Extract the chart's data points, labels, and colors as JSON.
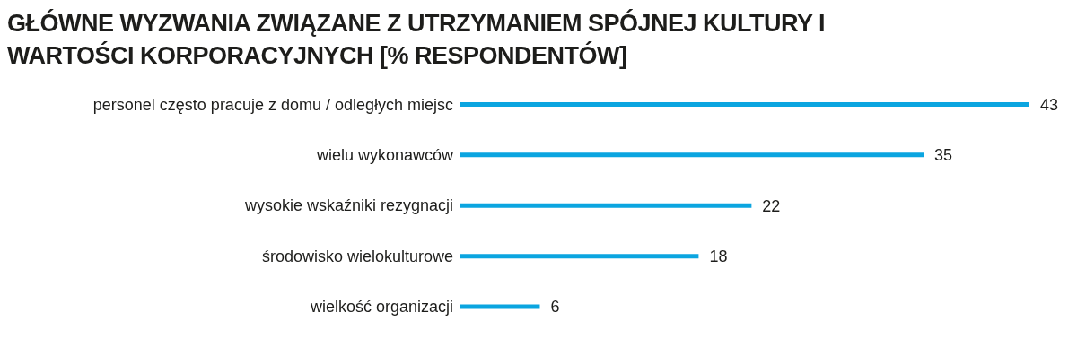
{
  "chart_data": {
    "type": "bar",
    "orientation": "horizontal",
    "title": "GŁÓWNE WYZWANIA ZWIĄZANE Z UTRZYMANIEM SPÓJNEJ KULTURY I WARTOŚCI KORPORACYJNYCH [% RESPONDENTÓW]",
    "categories": [
      "personel często pracuje z domu / odległych miejsc",
      "wielu wykonawców",
      "wysokie wskaźniki rezygnacji",
      "środowisko wielokulturowe",
      "wielkość organizacji"
    ],
    "values": [
      43,
      35,
      22,
      18,
      6
    ],
    "color": "#0ba5e0",
    "data_labels": true,
    "grid": false,
    "legend": false
  }
}
